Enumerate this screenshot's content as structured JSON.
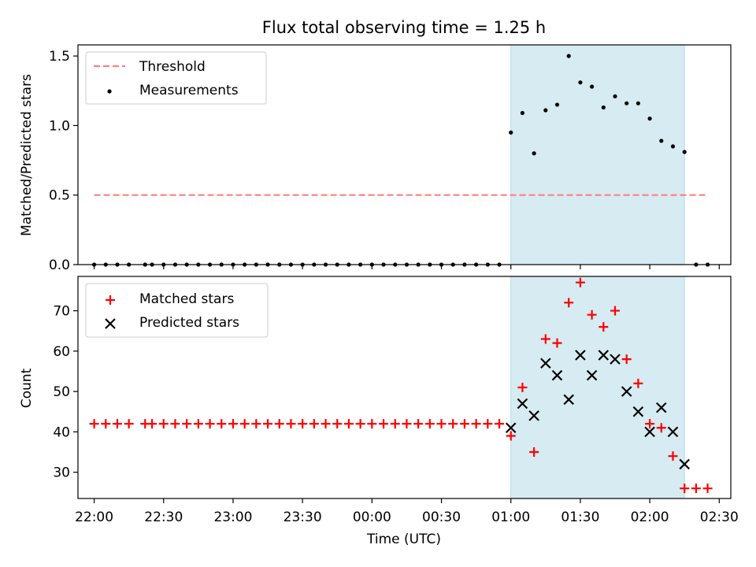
{
  "title": "Flux total observing time = 1.25 h",
  "chart_data": [
    {
      "type": "scatter",
      "ylabel": "Matched/Predicted stars",
      "ylim": [
        0,
        1.58
      ],
      "yticks": [
        0.0,
        0.5,
        1.0,
        1.5
      ],
      "ytick_labels": [
        "0.0",
        "0.5",
        "1.0",
        "1.5"
      ],
      "threshold": {
        "name": "Threshold",
        "value": 0.5,
        "x_start": "22:00",
        "x_end": "02:25",
        "color": "#ff7f7f"
      },
      "legend": {
        "placement": "upper-left",
        "entries": [
          {
            "name": "Threshold",
            "marker": "dashed-line",
            "color": "#ff7f7f"
          },
          {
            "name": "Measurements",
            "marker": "dot",
            "color": "#000000"
          }
        ]
      },
      "series": [
        {
          "name": "Measurements",
          "color": "#000000",
          "x": [
            "22:00",
            "22:05",
            "22:10",
            "22:15",
            "22:22",
            "22:25",
            "22:30",
            "22:35",
            "22:40",
            "22:45",
            "22:50",
            "22:55",
            "23:00",
            "23:05",
            "23:10",
            "23:15",
            "23:20",
            "23:25",
            "23:30",
            "23:35",
            "23:40",
            "23:45",
            "23:50",
            "23:55",
            "00:00",
            "00:05",
            "00:10",
            "00:15",
            "00:20",
            "00:25",
            "00:30",
            "00:35",
            "00:40",
            "00:45",
            "00:50",
            "00:55",
            "01:00",
            "01:05",
            "01:10",
            "01:15",
            "01:20",
            "01:25",
            "01:30",
            "01:35",
            "01:40",
            "01:45",
            "01:50",
            "01:55",
            "02:00",
            "02:05",
            "02:10",
            "02:15",
            "02:20",
            "02:25"
          ],
          "y": [
            0,
            0,
            0,
            0,
            0,
            0,
            0,
            0,
            0,
            0,
            0,
            0,
            0,
            0,
            0,
            0,
            0,
            0,
            0,
            0,
            0,
            0,
            0,
            0,
            0,
            0,
            0,
            0,
            0,
            0,
            0,
            0,
            0,
            0,
            0,
            0,
            0.95,
            1.09,
            0.8,
            1.11,
            1.15,
            1.5,
            1.31,
            1.28,
            1.13,
            1.21,
            1.16,
            1.16,
            1.05,
            0.89,
            0.85,
            0.81,
            0,
            0
          ]
        }
      ]
    },
    {
      "type": "scatter",
      "xlabel": "Time (UTC)",
      "ylabel": "Count",
      "ylim": [
        23.5,
        78.5
      ],
      "yticks": [
        30,
        40,
        50,
        60,
        70
      ],
      "ytick_labels": [
        "30",
        "40",
        "50",
        "60",
        "70"
      ],
      "xlim": [
        "21:53",
        "02:35"
      ],
      "xticks": [
        "22:00",
        "22:30",
        "23:00",
        "23:30",
        "00:00",
        "00:30",
        "01:00",
        "01:30",
        "02:00",
        "02:30"
      ],
      "xtick_labels": [
        "22:00",
        "22:30",
        "23:00",
        "23:30",
        "00:00",
        "00:30",
        "01:00",
        "01:30",
        "02:00",
        "02:30"
      ],
      "legend": {
        "placement": "upper-left",
        "entries": [
          {
            "name": "Matched stars",
            "marker": "plus",
            "color": "#ff0000"
          },
          {
            "name": "Predicted stars",
            "marker": "x",
            "color": "#000000"
          }
        ]
      },
      "series": [
        {
          "name": "Matched stars",
          "marker": "plus",
          "color": "#ff0000",
          "x": [
            "22:00",
            "22:05",
            "22:10",
            "22:15",
            "22:22",
            "22:25",
            "22:30",
            "22:35",
            "22:40",
            "22:45",
            "22:50",
            "22:55",
            "23:00",
            "23:05",
            "23:10",
            "23:15",
            "23:20",
            "23:25",
            "23:30",
            "23:35",
            "23:40",
            "23:45",
            "23:50",
            "23:55",
            "00:00",
            "00:05",
            "00:10",
            "00:15",
            "00:20",
            "00:25",
            "00:30",
            "00:35",
            "00:40",
            "00:45",
            "00:50",
            "00:55",
            "01:00",
            "01:05",
            "01:10",
            "01:15",
            "01:20",
            "01:25",
            "01:30",
            "01:35",
            "01:40",
            "01:45",
            "01:50",
            "01:55",
            "02:00",
            "02:05",
            "02:10",
            "02:15",
            "02:20",
            "02:25"
          ],
          "y": [
            42,
            42,
            42,
            42,
            42,
            42,
            42,
            42,
            42,
            42,
            42,
            42,
            42,
            42,
            42,
            42,
            42,
            42,
            42,
            42,
            42,
            42,
            42,
            42,
            42,
            42,
            42,
            42,
            42,
            42,
            42,
            42,
            42,
            42,
            42,
            42,
            39,
            51,
            35,
            63,
            62,
            72,
            77,
            69,
            66,
            70,
            58,
            52,
            42,
            41,
            34,
            26,
            26,
            26
          ]
        },
        {
          "name": "Predicted stars",
          "marker": "x",
          "color": "#000000",
          "x": [
            "01:00",
            "01:05",
            "01:10",
            "01:15",
            "01:20",
            "01:25",
            "01:30",
            "01:35",
            "01:40",
            "01:45",
            "01:50",
            "01:55",
            "02:00",
            "02:05",
            "02:10",
            "02:15"
          ],
          "y": [
            41,
            47,
            44,
            57,
            54,
            48,
            59,
            54,
            59,
            58,
            50,
            45,
            40,
            46,
            40,
            32
          ]
        }
      ]
    }
  ],
  "highlight": {
    "x_start": "01:00",
    "x_end": "02:15",
    "color": "#add8e6"
  }
}
